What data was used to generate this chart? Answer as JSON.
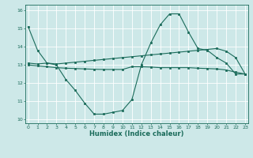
{
  "xlabel": "Humidex (Indice chaleur)",
  "x": [
    0,
    1,
    2,
    3,
    4,
    5,
    6,
    7,
    8,
    9,
    10,
    11,
    12,
    13,
    14,
    15,
    16,
    17,
    18,
    19,
    20,
    21,
    22,
    23
  ],
  "line1": [
    15.1,
    13.8,
    13.1,
    13.0,
    12.2,
    11.6,
    10.9,
    10.3,
    10.3,
    10.4,
    10.5,
    11.1,
    13.0,
    14.2,
    15.2,
    15.8,
    15.8,
    14.8,
    13.9,
    13.8,
    13.4,
    13.1,
    12.5,
    12.5
  ],
  "line2": [
    13.1,
    13.05,
    13.1,
    13.05,
    13.1,
    13.15,
    13.2,
    13.25,
    13.3,
    13.35,
    13.4,
    13.45,
    13.5,
    13.55,
    13.6,
    13.65,
    13.7,
    13.75,
    13.8,
    13.85,
    13.9,
    13.75,
    13.4,
    12.5
  ],
  "line3": [
    13.0,
    12.95,
    12.9,
    12.85,
    12.82,
    12.8,
    12.78,
    12.76,
    12.75,
    12.75,
    12.75,
    12.9,
    12.9,
    12.88,
    12.85,
    12.85,
    12.85,
    12.85,
    12.82,
    12.8,
    12.78,
    12.72,
    12.6,
    12.5
  ],
  "line_color": "#1a6b5a",
  "bg_color": "#cde8e8",
  "grid_color": "#b0d8d8",
  "ylim": [
    9.8,
    16.3
  ],
  "xlim": [
    -0.3,
    23.3
  ],
  "yticks": [
    10,
    11,
    12,
    13,
    14,
    15,
    16
  ],
  "xticks": [
    0,
    1,
    2,
    3,
    4,
    5,
    6,
    7,
    8,
    9,
    10,
    11,
    12,
    13,
    14,
    15,
    16,
    17,
    18,
    19,
    20,
    21,
    22,
    23
  ]
}
